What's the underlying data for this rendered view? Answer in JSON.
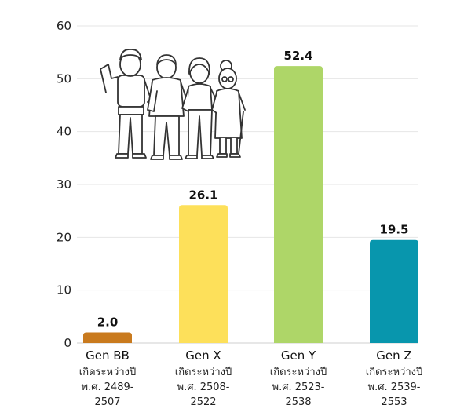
{
  "chart_data": {
    "type": "bar",
    "title": "",
    "xlabel": "",
    "ylabel": "",
    "ylim": [
      0,
      60
    ],
    "yticks": [
      0,
      10,
      20,
      30,
      40,
      50,
      60
    ],
    "grid": true,
    "categories": [
      "Gen BB",
      "Gen X",
      "Gen Y",
      "Gen Z"
    ],
    "category_sublabels": [
      [
        "เกิดระหว่างปี",
        "พ.ศ. 2489-",
        "2507"
      ],
      [
        "เกิดระหว่างปี",
        "พ.ศ. 2508-",
        "2522"
      ],
      [
        "เกิดระหว่างปี",
        "พ.ศ. 2523-",
        "2538"
      ],
      [
        "เกิดระหว่างปี",
        "พ.ศ. 2539-",
        "2553"
      ]
    ],
    "values": [
      2.0,
      26.1,
      52.4,
      19.5
    ],
    "value_labels": [
      "2.0",
      "26.1",
      "52.4",
      "19.5"
    ],
    "colors": [
      "#c97a1e",
      "#fde05a",
      "#aed668",
      "#0896ad"
    ]
  },
  "illustration": {
    "icon": "family-generations-icon"
  }
}
